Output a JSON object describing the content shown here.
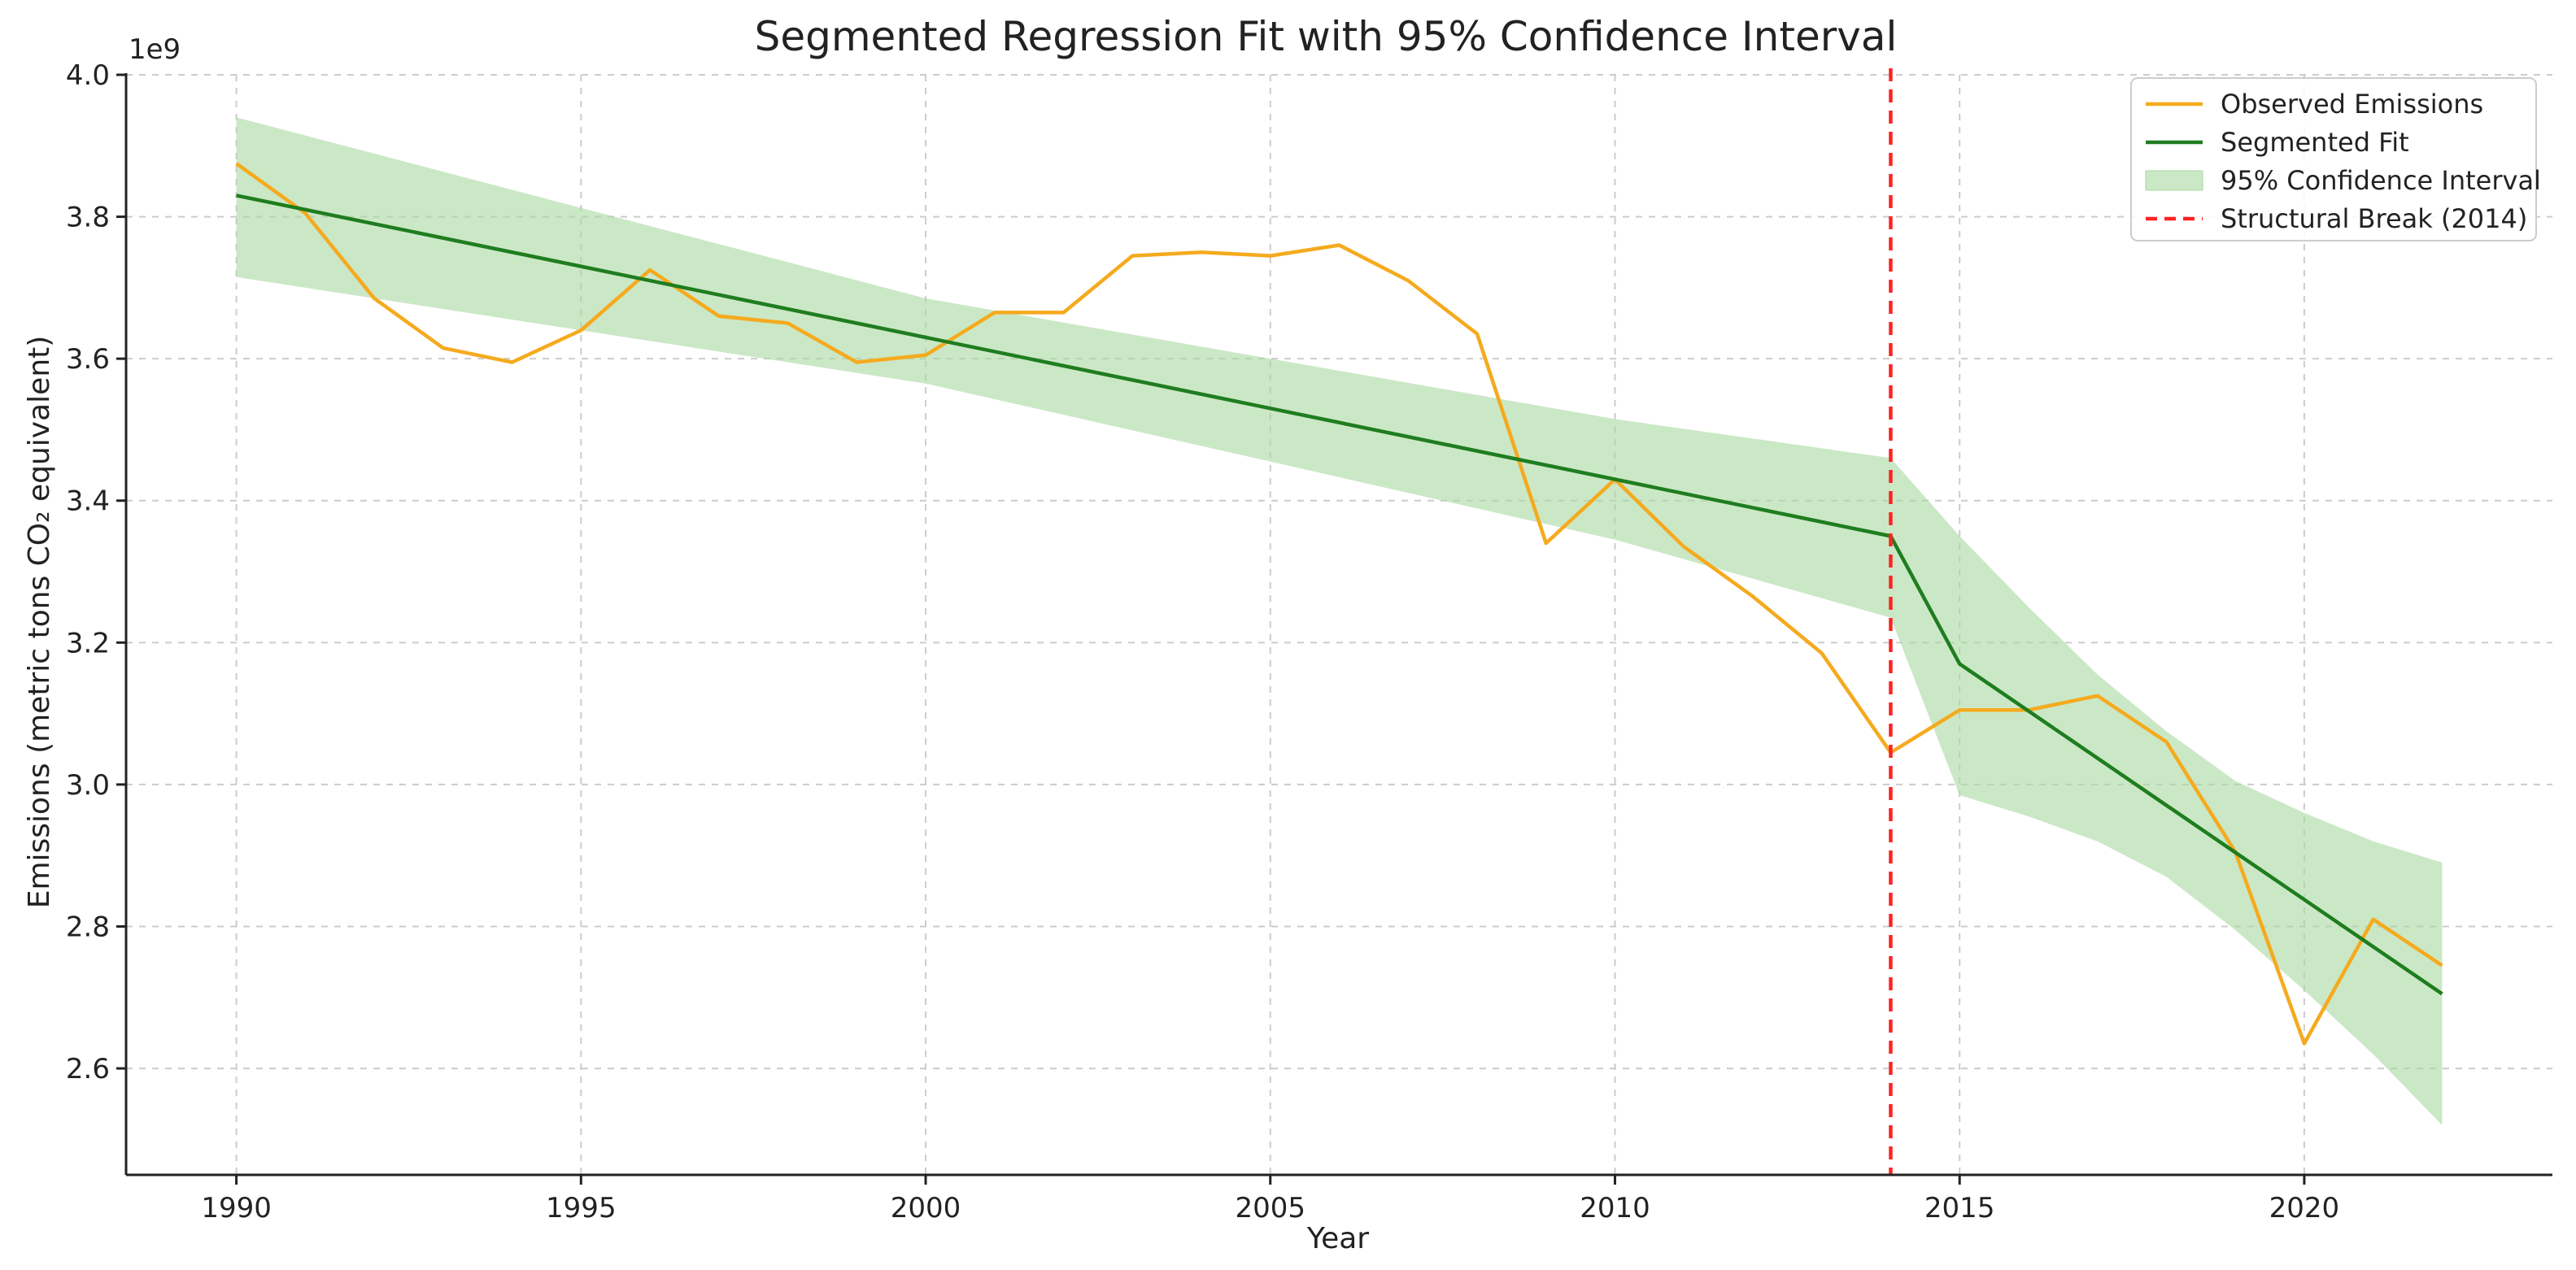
{
  "chart_data": {
    "type": "line",
    "title": "Segmented Regression Fit with 95% Confidence Interval",
    "xlabel": "Year",
    "ylabel": "Emissions (metric tons CO₂ equivalent)",
    "y_offset_label": "1e9",
    "y_scale": 1000000000,
    "xlim": [
      1988.4,
      2023.6
    ],
    "ylim": [
      2.45,
      4.0
    ],
    "x_ticks": [
      1990,
      1995,
      2000,
      2005,
      2010,
      2015,
      2020
    ],
    "y_ticks": [
      2.6,
      2.8,
      3.0,
      3.2,
      3.4,
      3.6,
      3.8,
      4.0
    ],
    "x_tick_labels": [
      "1990",
      "1995",
      "2000",
      "2005",
      "2010",
      "2015",
      "2020"
    ],
    "y_tick_labels": [
      "2.6",
      "2.8",
      "3.0",
      "3.2",
      "3.4",
      "3.6",
      "3.8",
      "4.0"
    ],
    "grid": true,
    "legend_position": "top-right",
    "x": [
      1990,
      1991,
      1992,
      1993,
      1994,
      1995,
      1996,
      1997,
      1998,
      1999,
      2000,
      2001,
      2002,
      2003,
      2004,
      2005,
      2006,
      2007,
      2008,
      2009,
      2010,
      2011,
      2012,
      2013,
      2014,
      2015,
      2016,
      2017,
      2018,
      2019,
      2020,
      2021,
      2022
    ],
    "series": [
      {
        "name": "Observed Emissions",
        "color": "#f5aa1e",
        "style": "solid",
        "values": [
          3.875,
          3.805,
          3.685,
          3.615,
          3.595,
          3.64,
          3.725,
          3.66,
          3.65,
          3.595,
          3.605,
          3.665,
          3.665,
          3.745,
          3.75,
          3.745,
          3.76,
          3.71,
          3.635,
          3.34,
          3.43,
          3.335,
          3.265,
          3.185,
          3.045,
          3.105,
          3.105,
          3.125,
          3.06,
          2.905,
          2.635,
          2.81,
          2.745
        ]
      },
      {
        "name": "Segmented Fit",
        "color": "#1f7d1f",
        "style": "solid",
        "x": [
          1990,
          2014,
          2015,
          2022
        ],
        "values": [
          3.83,
          3.35,
          3.17,
          2.705
        ]
      }
    ],
    "confidence_band": {
      "name": "95% Confidence Interval",
      "color": "#a9d8a0",
      "x": [
        1990,
        2000,
        2010,
        2014,
        2015,
        2016,
        2017,
        2018,
        2019,
        2020,
        2021,
        2022
      ],
      "upper": [
        3.94,
        3.685,
        3.515,
        3.46,
        3.35,
        3.25,
        3.155,
        3.075,
        3.005,
        2.96,
        2.92,
        2.89
      ],
      "lower": [
        3.715,
        3.565,
        3.345,
        3.235,
        2.985,
        2.955,
        2.92,
        2.87,
        2.795,
        2.71,
        2.62,
        2.52
      ]
    },
    "annotations": [
      {
        "type": "vline",
        "x": 2014,
        "name": "Structural Break (2014)",
        "color": "#ff2222",
        "style": "dashed"
      }
    ],
    "legend": [
      {
        "label": "Observed Emissions",
        "kind": "line",
        "color": "#f5aa1e"
      },
      {
        "label": "Segmented Fit",
        "kind": "line",
        "color": "#1f7d1f"
      },
      {
        "label": "95% Confidence Interval",
        "kind": "patch",
        "color": "#a9d8a0"
      },
      {
        "label": "Structural Break (2014)",
        "kind": "dashed",
        "color": "#ff2222"
      }
    ]
  }
}
